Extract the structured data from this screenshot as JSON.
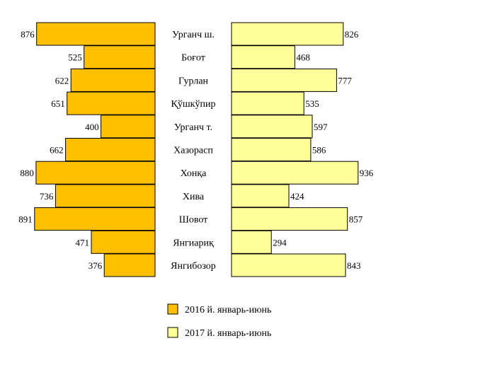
{
  "chart_data": {
    "type": "bar",
    "orientation": "horizontal-butterfly",
    "categories": [
      "Урганч ш.",
      "Боғот",
      "Гурлан",
      "Қўшкўпир",
      "Урганч т.",
      "Хазорасп",
      "Хонқа",
      "Хива",
      "Шовот",
      "Янгиариқ",
      "Янгибозор"
    ],
    "series": [
      {
        "name": "2016 й. январь-июнь",
        "color": "#FFC000",
        "values": [
          876,
          525,
          622,
          651,
          400,
          662,
          880,
          736,
          891,
          471,
          376
        ]
      },
      {
        "name": "2017 й. январь-июнь",
        "color": "#FFFF99",
        "values": [
          826,
          468,
          777,
          535,
          597,
          586,
          936,
          424,
          857,
          294,
          843
        ]
      }
    ],
    "legend_position": "bottom",
    "grid": false
  }
}
